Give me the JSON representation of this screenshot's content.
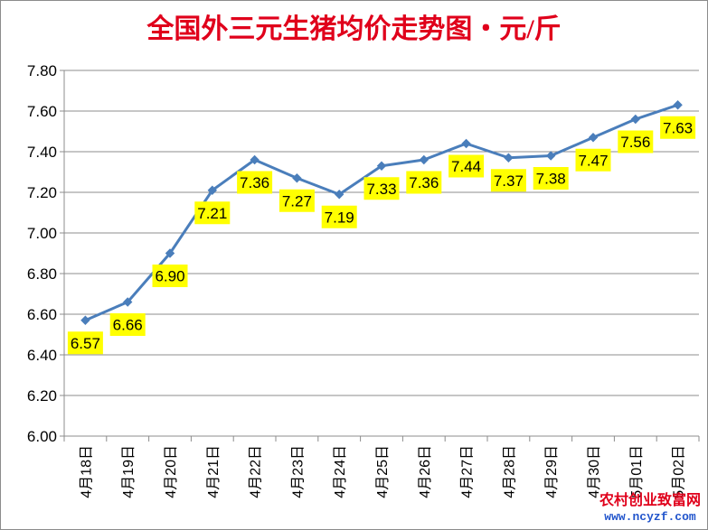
{
  "chart_data": {
    "type": "line",
    "title": "全国外三元生猪均价走势图・元/斤",
    "categories": [
      "4月18日",
      "4月19日",
      "4月20日",
      "4月21日",
      "4月22日",
      "4月23日",
      "4月24日",
      "4月25日",
      "4月26日",
      "4月27日",
      "4月28日",
      "4月29日",
      "4月30日",
      "5月01日",
      "5月02日"
    ],
    "series": [
      {
        "values": [
          6.57,
          6.66,
          6.9,
          7.21,
          7.36,
          7.27,
          7.19,
          7.33,
          7.36,
          7.44,
          7.37,
          7.38,
          7.47,
          7.56,
          7.63
        ]
      }
    ],
    "value_labels": [
      "6.57",
      "6.66",
      "6.90",
      "7.21",
      "7.36",
      "7.27",
      "7.19",
      "7.33",
      "7.36",
      "7.44",
      "7.37",
      "7.38",
      "7.47",
      "7.56",
      "7.63"
    ],
    "yticks": [
      "6.00",
      "6.20",
      "6.40",
      "6.60",
      "6.80",
      "7.00",
      "7.20",
      "7.40",
      "7.60",
      "7.80"
    ],
    "ylim": [
      6.0,
      7.8
    ],
    "xlabel": "",
    "ylabel": "",
    "grid": true,
    "legend": "none",
    "line_color": "#4a7ebb",
    "label_bg_color": "#ffff00",
    "title_color": "#e0001b"
  },
  "watermark": {
    "line1": "农村创业致富网",
    "line2": "www.ncyzf.com"
  }
}
